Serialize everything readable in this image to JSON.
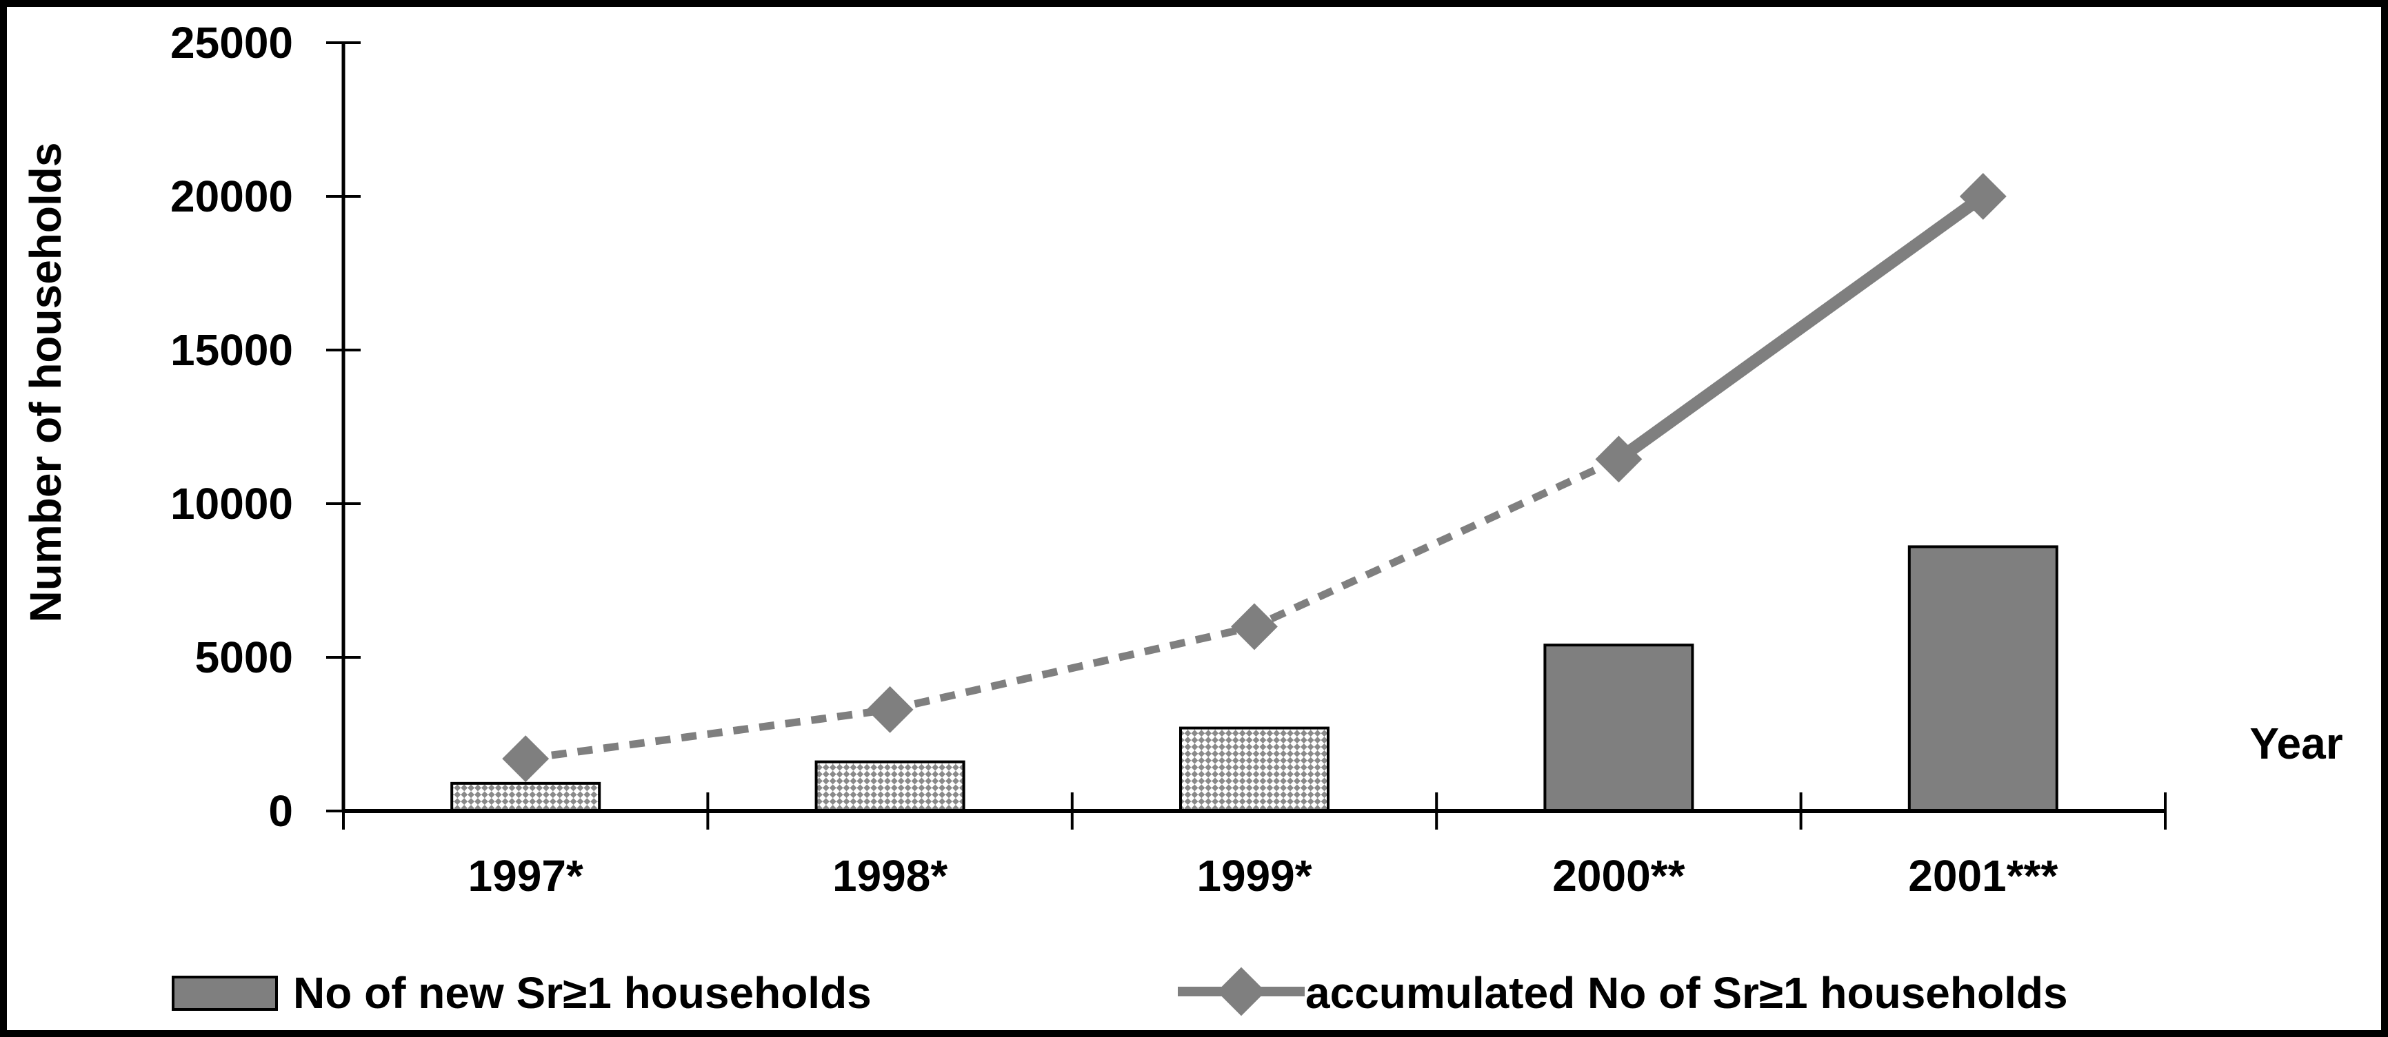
{
  "figure": {
    "background": "#ffffff",
    "border_color": "#000000"
  },
  "colors": {
    "series_gray": "#7f7f7f",
    "axis_black": "#000000",
    "pattern_fill_bg": "#ffffff"
  },
  "chart_data": {
    "type": "bar",
    "title": "",
    "xlabel": "Year",
    "ylabel": "Number of households",
    "categories": [
      "1997*",
      "1998*",
      "1999*",
      "2000**",
      "2001***"
    ],
    "yticks": [
      0,
      5000,
      10000,
      15000,
      20000,
      25000
    ],
    "ylim": [
      0,
      25000
    ],
    "grid": false,
    "legend_position": "bottom",
    "series": [
      {
        "name": "No of new Sr≥1 households",
        "type": "bar",
        "values": [
          900,
          1600,
          2700,
          5400,
          8600
        ],
        "bar_styles": [
          "pattern",
          "pattern",
          "pattern",
          "solid",
          "solid"
        ]
      },
      {
        "name": "accumulated No of Sr≥1 households",
        "type": "line",
        "marker": "diamond",
        "values": [
          1700,
          3300,
          6000,
          11450,
          20000
        ],
        "segment_styles": [
          "dashed",
          "dashed",
          "dashed",
          "solid"
        ]
      }
    ]
  }
}
